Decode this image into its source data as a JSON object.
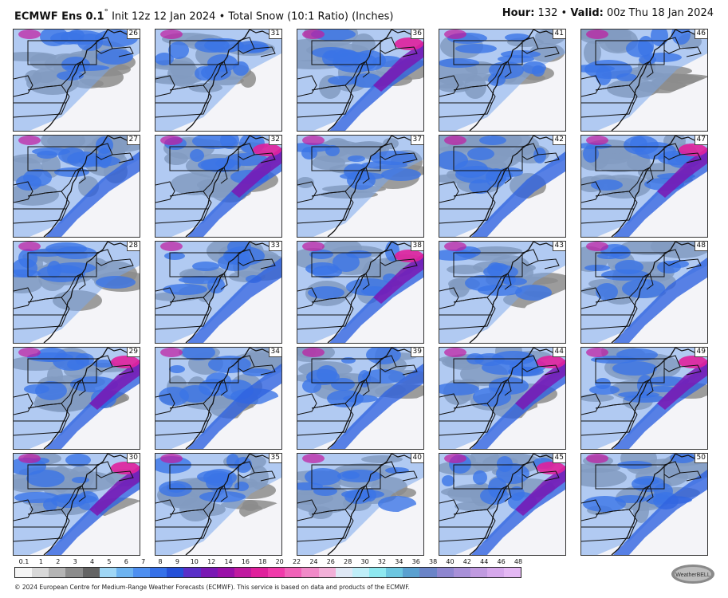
{
  "header": {
    "model": "ECMWF Ens 0.1",
    "degree": "°",
    "init": "Init 12z 12 Jan 2024",
    "bullet": "•",
    "product": "Total Snow (10:1 Ratio) (Inches)",
    "hour_label": "Hour:",
    "hour_value": "132",
    "valid_label": "Valid:",
    "valid_value": "00z Thu 18 Jan 2024"
  },
  "panels": [
    {
      "member": "26",
      "snow": "low"
    },
    {
      "member": "31",
      "snow": "low"
    },
    {
      "member": "36",
      "snow": "high"
    },
    {
      "member": "41",
      "snow": "low"
    },
    {
      "member": "46",
      "snow": "low"
    },
    {
      "member": "27",
      "snow": "mid"
    },
    {
      "member": "32",
      "snow": "high"
    },
    {
      "member": "37",
      "snow": "low"
    },
    {
      "member": "42",
      "snow": "mid"
    },
    {
      "member": "47",
      "snow": "high"
    },
    {
      "member": "28",
      "snow": "low"
    },
    {
      "member": "33",
      "snow": "mid"
    },
    {
      "member": "38",
      "snow": "high"
    },
    {
      "member": "43",
      "snow": "low"
    },
    {
      "member": "48",
      "snow": "mid"
    },
    {
      "member": "29",
      "snow": "high"
    },
    {
      "member": "34",
      "snow": "mid"
    },
    {
      "member": "39",
      "snow": "mid"
    },
    {
      "member": "44",
      "snow": "high"
    },
    {
      "member": "49",
      "snow": "high"
    },
    {
      "member": "30",
      "snow": "high"
    },
    {
      "member": "35",
      "snow": "low"
    },
    {
      "member": "40",
      "snow": "low"
    },
    {
      "member": "45",
      "snow": "high"
    },
    {
      "member": "50",
      "snow": "mid"
    }
  ],
  "legend": {
    "ticks": [
      "0.1",
      "1",
      "2",
      "3",
      "4",
      "5",
      "6",
      "7",
      "8",
      "9",
      "10",
      "12",
      "14",
      "16",
      "18",
      "20",
      "22",
      "24",
      "26",
      "28",
      "30",
      "32",
      "34",
      "36",
      "38",
      "40",
      "42",
      "44",
      "46",
      "48"
    ],
    "colors": [
      "#f5f5f5",
      "#d9d9d9",
      "#b4b4b4",
      "#8c8c8c",
      "#646464",
      "#9fd6f5",
      "#6db3f0",
      "#4e8ff0",
      "#3570e8",
      "#2550d8",
      "#5a2fc8",
      "#7a18b4",
      "#9a10a8",
      "#c01aa0",
      "#e0209c",
      "#f03aaa",
      "#f062b8",
      "#f08ac8",
      "#f2b0d8",
      "#dfe8f5",
      "#bfeef8",
      "#8ee8f0",
      "#6cc6e0",
      "#5aa0d0",
      "#6a84c8",
      "#8e86d0",
      "#a890d8",
      "#c09ae0",
      "#d6a8ec",
      "#e4b8f4"
    ]
  },
  "footer": "© 2024 European Centre for Medium-Range Weather Forecasts (ECMWF). This service is based on data and products of the ECMWF.",
  "logo_text": "WeatherBELL"
}
